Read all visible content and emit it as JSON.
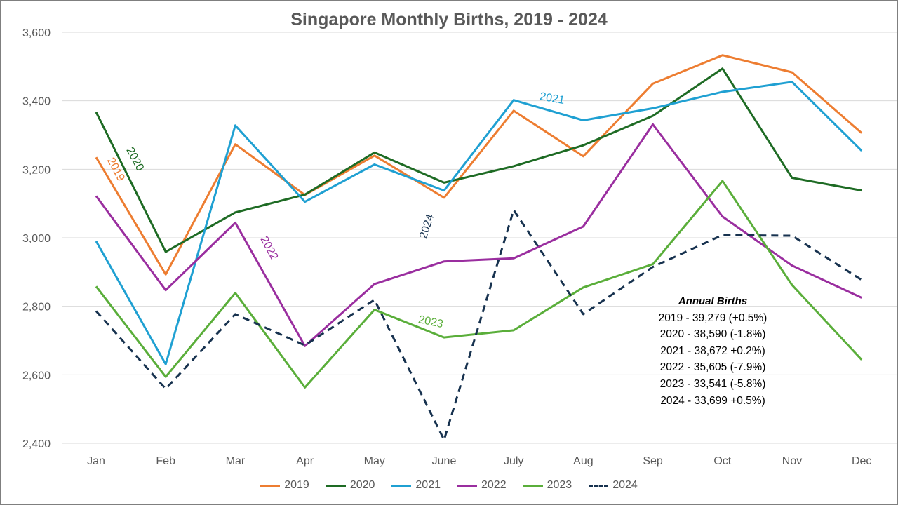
{
  "chart_data": {
    "type": "line",
    "title": "Singapore Monthly Births, 2019 - 2024",
    "xlabel": "",
    "ylabel": "",
    "categories": [
      "Jan",
      "Feb",
      "Mar",
      "Apr",
      "May",
      "June",
      "July",
      "Aug",
      "Sep",
      "Oct",
      "Nov",
      "Dec"
    ],
    "ylim": [
      2400,
      3600
    ],
    "yticks": [
      2400,
      2600,
      2800,
      3000,
      3200,
      3400,
      3600
    ],
    "ytick_labels": [
      "2,400",
      "2,600",
      "2,800",
      "3,000",
      "3,200",
      "3,400",
      "3,600"
    ],
    "grid": true,
    "legend_position": "bottom",
    "series": [
      {
        "name": "2019",
        "color": "#ED7D31",
        "dashed": false,
        "values": [
          3235,
          2893,
          3273,
          3125,
          3240,
          3117,
          3371,
          3238,
          3450,
          3533,
          3483,
          3306
        ]
      },
      {
        "name": "2020",
        "color": "#1E6B24",
        "dashed": false,
        "values": [
          3367,
          2959,
          3074,
          3126,
          3249,
          3161,
          3209,
          3270,
          3356,
          3494,
          3175,
          3138
        ]
      },
      {
        "name": "2021",
        "color": "#1FA0D2",
        "dashed": false,
        "values": [
          2990,
          2631,
          3328,
          3105,
          3214,
          3138,
          3402,
          3343,
          3378,
          3426,
          3455,
          3254
        ]
      },
      {
        "name": "2022",
        "color": "#9A2E9F",
        "dashed": false,
        "values": [
          3122,
          2847,
          3044,
          2684,
          2865,
          2931,
          2940,
          3033,
          3331,
          3062,
          2919,
          2825
        ]
      },
      {
        "name": "2023",
        "color": "#5AAE3A",
        "dashed": false,
        "values": [
          2858,
          2594,
          2839,
          2563,
          2790,
          2709,
          2730,
          2855,
          2923,
          3166,
          2862,
          2644
        ]
      },
      {
        "name": "2024",
        "color": "#17324F",
        "dashed": true,
        "values": [
          2786,
          2559,
          2777,
          2686,
          2819,
          2410,
          3081,
          2777,
          2915,
          3008,
          3006,
          2877
        ]
      }
    ],
    "line_labels": [
      {
        "text": "2019",
        "series": "2019",
        "x": "Jan",
        "y": 3195,
        "rotate": 62
      },
      {
        "text": "2020",
        "series": "2020",
        "x": "Feb",
        "y": 3225,
        "rotate": 62
      },
      {
        "text": "2021",
        "series": "2021",
        "x": "July",
        "y": 3397,
        "rotate": 10
      },
      {
        "text": "2022",
        "series": "2022",
        "x": "Mar",
        "y": 2965,
        "rotate": 62
      },
      {
        "text": "2023",
        "series": "2023",
        "x": "June",
        "y": 2745,
        "rotate": 12
      },
      {
        "text": "2024",
        "series": "2024",
        "x": "June",
        "y": 3030,
        "rotate": -72
      }
    ],
    "annotation": {
      "heading": "Annual Births",
      "lines": [
        "2019 - 39,279 (+0.5%)",
        "2020 - 38,590 (-1.8%)",
        "2021 - 38,672 +0.2%)",
        "2022 - 35,605 (-7.9%)",
        "2023 - 33,541 (-5.8%)",
        "2024 - 33,699 +0.5%)"
      ]
    }
  }
}
